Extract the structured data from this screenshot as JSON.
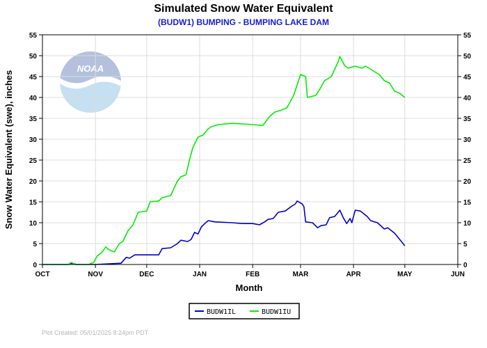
{
  "chart_data": {
    "type": "line",
    "title": "Simulated Snow Water Equivalent",
    "subtitle": "(BUDW1) BUMPING - BUMPING LAKE DAM",
    "xlabel": "Month",
    "ylabel": "Snow Water Equivalent (swe),  inches",
    "x_ticks": [
      "OCT",
      "NOV",
      "DEC",
      "JAN",
      "FEB",
      "MAR",
      "APR",
      "MAY",
      "JUN"
    ],
    "y_ticks": [
      0,
      5,
      10,
      15,
      20,
      25,
      30,
      35,
      40,
      45,
      50,
      55
    ],
    "xlim": [
      "2024-10-01",
      "2025-06-01"
    ],
    "ylim": [
      0,
      55
    ],
    "grid": true,
    "legend": "bottom-center",
    "footer": "Plot Created: 05/01/2025 8:24pm PDT",
    "logo_text": "NOAA",
    "series": [
      {
        "name": "BUDW1IL",
        "color": "#0000cc",
        "points": [
          [
            "2024-10-01",
            0
          ],
          [
            "2024-10-16",
            0
          ],
          [
            "2024-10-18",
            0.3
          ],
          [
            "2024-10-21",
            0
          ],
          [
            "2024-11-01",
            0
          ],
          [
            "2024-11-16",
            0.3
          ],
          [
            "2024-11-19",
            1.7
          ],
          [
            "2024-11-21",
            1.5
          ],
          [
            "2024-11-24",
            2.3
          ],
          [
            "2024-12-05",
            2.3
          ],
          [
            "2024-12-08",
            2.3
          ],
          [
            "2024-12-10",
            3.8
          ],
          [
            "2024-12-15",
            4.0
          ],
          [
            "2024-12-19",
            5.0
          ],
          [
            "2024-12-21",
            5.8
          ],
          [
            "2024-12-25",
            5.5
          ],
          [
            "2024-12-27",
            6.0
          ],
          [
            "2024-12-29",
            7.7
          ],
          [
            "2024-12-31",
            7.3
          ],
          [
            "2025-01-02",
            9.0
          ],
          [
            "2025-01-04",
            9.8
          ],
          [
            "2025-01-06",
            10.5
          ],
          [
            "2025-01-10",
            10.2
          ],
          [
            "2025-01-20",
            10.0
          ],
          [
            "2025-01-26",
            9.8
          ],
          [
            "2025-02-01",
            9.8
          ],
          [
            "2025-02-05",
            9.5
          ],
          [
            "2025-02-08",
            10.2
          ],
          [
            "2025-02-10",
            10.8
          ],
          [
            "2025-02-13",
            11.0
          ],
          [
            "2025-02-16",
            12.5
          ],
          [
            "2025-02-20",
            12.8
          ],
          [
            "2025-02-24",
            14.0
          ],
          [
            "2025-02-26",
            14.5
          ],
          [
            "2025-02-27",
            15.2
          ],
          [
            "2025-03-02",
            14.5
          ],
          [
            "2025-03-03",
            13.8
          ],
          [
            "2025-03-04",
            10.2
          ],
          [
            "2025-03-08",
            10.0
          ],
          [
            "2025-03-11",
            8.8
          ],
          [
            "2025-03-13",
            9.3
          ],
          [
            "2025-03-16",
            9.5
          ],
          [
            "2025-03-18",
            11.2
          ],
          [
            "2025-03-21",
            11.5
          ],
          [
            "2025-03-24",
            13.0
          ],
          [
            "2025-03-26",
            11.2
          ],
          [
            "2025-03-28",
            9.8
          ],
          [
            "2025-03-30",
            11.0
          ],
          [
            "2025-03-31",
            10.0
          ],
          [
            "2025-04-02",
            13.0
          ],
          [
            "2025-04-05",
            12.8
          ],
          [
            "2025-04-09",
            11.5
          ],
          [
            "2025-04-11",
            10.5
          ],
          [
            "2025-04-15",
            10.0
          ],
          [
            "2025-04-19",
            8.5
          ],
          [
            "2025-04-21",
            8.8
          ],
          [
            "2025-04-25",
            7.5
          ],
          [
            "2025-04-28",
            6.0
          ],
          [
            "2025-05-01",
            4.5
          ]
        ]
      },
      {
        "name": "BUDW1IU",
        "color": "#00ee00",
        "points": [
          [
            "2024-10-01",
            0
          ],
          [
            "2024-10-16",
            0
          ],
          [
            "2024-10-18",
            0.5
          ],
          [
            "2024-10-20",
            0
          ],
          [
            "2024-10-28",
            0
          ],
          [
            "2024-10-31",
            0.5
          ],
          [
            "2024-11-02",
            2.0
          ],
          [
            "2024-11-05",
            3.0
          ],
          [
            "2024-11-07",
            4.2
          ],
          [
            "2024-11-09",
            3.5
          ],
          [
            "2024-11-12",
            3.0
          ],
          [
            "2024-11-15",
            5.0
          ],
          [
            "2024-11-17",
            5.5
          ],
          [
            "2024-11-20",
            8.0
          ],
          [
            "2024-11-23",
            9.5
          ],
          [
            "2024-11-26",
            12.5
          ],
          [
            "2024-12-01",
            12.8
          ],
          [
            "2024-12-03",
            15.0
          ],
          [
            "2024-12-08",
            15.2
          ],
          [
            "2024-12-10",
            16.0
          ],
          [
            "2024-12-15",
            16.5
          ],
          [
            "2024-12-19",
            20.0
          ],
          [
            "2024-12-21",
            21.0
          ],
          [
            "2024-12-24",
            21.5
          ],
          [
            "2024-12-26",
            25.0
          ],
          [
            "2024-12-28",
            28.0
          ],
          [
            "2024-12-31",
            30.5
          ],
          [
            "2025-01-03",
            31.0
          ],
          [
            "2025-01-06",
            32.5
          ],
          [
            "2025-01-08",
            33.0
          ],
          [
            "2025-01-12",
            33.5
          ],
          [
            "2025-01-20",
            33.8
          ],
          [
            "2025-02-01",
            33.5
          ],
          [
            "2025-02-07",
            33.3
          ],
          [
            "2025-02-11",
            35.5
          ],
          [
            "2025-02-14",
            36.5
          ],
          [
            "2025-02-18",
            37.0
          ],
          [
            "2025-02-21",
            37.5
          ],
          [
            "2025-02-23",
            39.0
          ],
          [
            "2025-02-25",
            40.5
          ],
          [
            "2025-02-27",
            43.0
          ],
          [
            "2025-03-01",
            45.5
          ],
          [
            "2025-03-04",
            45.0
          ],
          [
            "2025-03-05",
            40.0
          ],
          [
            "2025-03-10",
            40.5
          ],
          [
            "2025-03-13",
            42.5
          ],
          [
            "2025-03-15",
            44.0
          ],
          [
            "2025-03-19",
            45.0
          ],
          [
            "2025-03-23",
            48.5
          ],
          [
            "2025-03-24",
            49.8
          ],
          [
            "2025-03-27",
            47.5
          ],
          [
            "2025-03-29",
            47.0
          ],
          [
            "2025-04-02",
            47.5
          ],
          [
            "2025-04-06",
            47.0
          ],
          [
            "2025-04-08",
            47.5
          ],
          [
            "2025-04-12",
            46.5
          ],
          [
            "2025-04-16",
            45.5
          ],
          [
            "2025-04-19",
            44.0
          ],
          [
            "2025-04-22",
            43.5
          ],
          [
            "2025-04-25",
            41.5
          ],
          [
            "2025-04-28",
            41.0
          ],
          [
            "2025-05-01",
            40.0
          ]
        ]
      }
    ]
  }
}
